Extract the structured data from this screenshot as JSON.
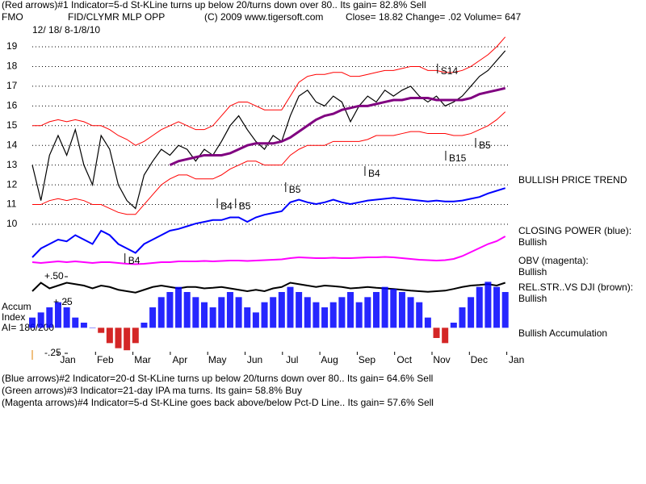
{
  "chart_data": {
    "type": "line",
    "header": [
      "(Red arrows)#1 Indicator=5-d St-KLine turns up below 20/turns down over 80.. Its gain= 82.8% Sell",
      "FMO",
      "FID/CLYMR MLP OPP",
      "(C) 2009 www.tigersoft.com",
      "Close=  18.82  Change= .02 Volume=  647",
      "12/ 18/ 8-1/8/10"
    ],
    "right_labels": [
      "BULLISH PRICE TREND",
      "CLOSING POWER (blue):",
      "Bullish",
      "OBV (magenta):",
      "Bullish",
      "REL.STR..VS DJI (brown):",
      "Bullish",
      "Bullish Accumulation"
    ],
    "left_labels": [
      "Accum",
      "Index",
      "AI= 186/200"
    ],
    "footer": [
      "(Blue arrows)#2 Indicator=20-d St-KLine turns up below 20/turns down over 80.. Its gain= 64.6% Sell",
      "(Green arrows)#3 Indicator=21-day IPA ma turns. Its gain= 58.8% Buy",
      "(Magenta arrows)#4 Indicator=5-d St-KLine goes back above/below Pct-D Line.. Its gain= 57.6% Sell"
    ],
    "x": [
      -0.95,
      -0.72,
      -0.49,
      -0.26,
      -0.03,
      0.2,
      0.43,
      0.66,
      0.89,
      1.12,
      1.35,
      1.58,
      1.81,
      2.04,
      2.27,
      2.5,
      2.73,
      2.96,
      3.19,
      3.42,
      3.65,
      3.88,
      4.11,
      4.34,
      4.57,
      4.8,
      5.03,
      5.26,
      5.49,
      5.72,
      5.95,
      6.18,
      6.41,
      6.64,
      6.87,
      7.1,
      7.33,
      7.56,
      7.79,
      8.02,
      8.25,
      8.48,
      8.71,
      8.94,
      9.17,
      9.4,
      9.63,
      9.86,
      10.09,
      10.32,
      10.55,
      10.78,
      11.01,
      11.24,
      11.47,
      11.7
    ],
    "xlim": [
      -1,
      12.5
    ],
    "xticks": [
      {
        "value": 0,
        "label": "Jan"
      },
      {
        "value": 1,
        "label": "Feb"
      },
      {
        "value": 2,
        "label": "Mar"
      },
      {
        "value": 3,
        "label": "Apr"
      },
      {
        "value": 4,
        "label": "May"
      },
      {
        "value": 5,
        "label": "Jun"
      },
      {
        "value": 6,
        "label": "Jul"
      },
      {
        "value": 7,
        "label": "Aug"
      },
      {
        "value": 8,
        "label": "Sep"
      },
      {
        "value": 9,
        "label": "Oct"
      },
      {
        "value": 10,
        "label": "Nov"
      },
      {
        "value": 11,
        "label": "Dec"
      },
      {
        "value": 12,
        "label": "Jan"
      }
    ],
    "ylim": [
      10,
      19
    ],
    "yticks": [
      10,
      11,
      12,
      13,
      14,
      15,
      16,
      17,
      18,
      19
    ],
    "grid": true,
    "series": [
      {
        "color": "#000000",
        "width": 1.2,
        "values": [
          13.0,
          11.2,
          13.5,
          14.5,
          13.5,
          14.8,
          13.0,
          12.0,
          14.5,
          13.8,
          12.0,
          11.2,
          10.8,
          12.5,
          13.2,
          13.8,
          13.5,
          14.0,
          13.8,
          13.2,
          13.8,
          13.5,
          14.2,
          15.0,
          15.5,
          14.8,
          14.2,
          13.8,
          14.5,
          14.2,
          15.5,
          16.5,
          16.8,
          16.2,
          16.0,
          16.5,
          16.2,
          15.2,
          16.0,
          16.5,
          16.2,
          16.8,
          16.5,
          16.8,
          17.0,
          16.5,
          16.2,
          16.5,
          16.0,
          16.2,
          16.5,
          17.0,
          17.5,
          17.8,
          18.3,
          18.8
        ]
      },
      {
        "color": "#ff0000",
        "width": 1,
        "values": [
          15,
          15,
          15.2,
          15.3,
          15.2,
          15.3,
          15.2,
          15.0,
          15.0,
          14.8,
          14.5,
          14.3,
          14.0,
          14.2,
          14.5,
          14.8,
          15.0,
          15.2,
          15.0,
          14.8,
          14.8,
          15.0,
          15.5,
          16.0,
          16.2,
          16.2,
          16.0,
          15.8,
          15.8,
          15.8,
          16.5,
          17.2,
          17.5,
          17.6,
          17.6,
          17.7,
          17.7,
          17.5,
          17.5,
          17.6,
          17.7,
          17.8,
          17.8,
          17.9,
          18.0,
          18.0,
          17.8,
          17.8,
          17.7,
          17.7,
          17.8,
          18.0,
          18.3,
          18.6,
          19.0,
          19.5
        ]
      },
      {
        "color": "#ff0000",
        "width": 1,
        "values": [
          11,
          11,
          11.2,
          11.3,
          11.2,
          11.3,
          11.2,
          11,
          11,
          10.8,
          10.6,
          10.5,
          10.5,
          11,
          11.5,
          12,
          12.3,
          12.5,
          12.5,
          12.3,
          12.3,
          12.3,
          12.5,
          12.8,
          13.0,
          13.2,
          13.2,
          13.0,
          13.0,
          13.0,
          13.5,
          13.8,
          14,
          14,
          14,
          14.2,
          14.2,
          14.2,
          14.2,
          14.3,
          14.5,
          14.5,
          14.5,
          14.6,
          14.7,
          14.7,
          14.6,
          14.6,
          14.6,
          14.5,
          14.5,
          14.6,
          14.8,
          15,
          15.3,
          15.7
        ]
      },
      {
        "color": "#800080",
        "width": 3,
        "values": [
          null,
          null,
          null,
          null,
          null,
          null,
          null,
          null,
          null,
          null,
          null,
          null,
          null,
          null,
          null,
          null,
          13.0,
          13.2,
          13.3,
          13.4,
          13.5,
          13.5,
          13.5,
          13.6,
          13.8,
          14.0,
          14.1,
          14.1,
          14.1,
          14.2,
          14.4,
          14.7,
          15.0,
          15.3,
          15.5,
          15.6,
          15.8,
          15.9,
          16.0,
          16.0,
          16.1,
          16.2,
          16.3,
          16.3,
          16.4,
          16.4,
          16.4,
          16.3,
          16.3,
          16.3,
          16.3,
          16.4,
          16.6,
          16.7,
          16.8,
          16.9
        ]
      }
    ],
    "panels": [
      {
        "ylim": [
          0,
          100
        ],
        "color": "#0000ff",
        "width": 2,
        "values": [
          10,
          20,
          25,
          30,
          28,
          35,
          30,
          25,
          40,
          35,
          25,
          20,
          15,
          25,
          30,
          35,
          40,
          42,
          45,
          48,
          50,
          52,
          52,
          55,
          55,
          50,
          55,
          58,
          60,
          62,
          72,
          75,
          72,
          70,
          72,
          75,
          72,
          70,
          72,
          74,
          75,
          76,
          77,
          76,
          75,
          74,
          73,
          74,
          73,
          73,
          74,
          76,
          78,
          82,
          85,
          88
        ]
      },
      {
        "ylim": [
          0,
          100
        ],
        "color": "#ff00ff",
        "width": 2,
        "values": [
          20,
          18,
          20,
          22,
          20,
          22,
          20,
          18,
          20,
          20,
          18,
          16,
          15,
          16,
          18,
          20,
          20,
          22,
          22,
          22,
          23,
          22,
          23,
          24,
          24,
          23,
          24,
          25,
          26,
          27,
          30,
          32,
          31,
          30,
          30,
          31,
          30,
          30,
          31,
          32,
          32,
          33,
          32,
          30,
          28,
          26,
          25,
          24,
          25,
          28,
          35,
          45,
          55,
          65,
          72,
          84
        ]
      },
      {
        "ylim": [
          0,
          100
        ],
        "color": "#000000",
        "width": 2,
        "values": [
          40,
          70,
          50,
          60,
          70,
          65,
          60,
          50,
          60,
          55,
          45,
          40,
          35,
          45,
          55,
          60,
          55,
          50,
          55,
          55,
          50,
          52,
          55,
          50,
          45,
          40,
          45,
          40,
          50,
          55,
          70,
          65,
          60,
          55,
          60,
          58,
          55,
          50,
          52,
          55,
          52,
          50,
          48,
          45,
          42,
          40,
          38,
          40,
          42,
          48,
          55,
          60,
          62,
          65,
          60,
          70
        ]
      }
    ],
    "accum": {
      "ylim": [
        -0.25,
        0.5
      ],
      "yticks": [
        {
          "value": 0.5,
          "label": "+.50"
        },
        {
          "value": 0.25,
          "label": "+.25"
        },
        {
          "value": -0.25,
          "label": "-.25"
        }
      ],
      "pos_color": "#0000ff",
      "neg_color": "#cc0000",
      "values": [
        0.1,
        0.15,
        0.2,
        0.25,
        0.2,
        0.1,
        0.05,
        0,
        -0.05,
        -0.15,
        -0.2,
        -0.22,
        -0.15,
        0.05,
        0.2,
        0.3,
        0.35,
        0.4,
        0.35,
        0.3,
        0.25,
        0.2,
        0.3,
        0.35,
        0.3,
        0.2,
        0.15,
        0.25,
        0.3,
        0.35,
        0.4,
        0.35,
        0.3,
        0.25,
        0.2,
        0.25,
        0.3,
        0.35,
        0.25,
        0.3,
        0.35,
        0.4,
        0.38,
        0.35,
        0.3,
        0.25,
        0.1,
        -0.1,
        -0.15,
        0.05,
        0.2,
        0.3,
        0.4,
        0.45,
        0.4,
        0.35
      ]
    },
    "annotations": [
      {
        "label": "B4",
        "x": 1.7,
        "y": 8.28
      },
      {
        "label": "B4",
        "x": 4.17,
        "y": 11.06
      },
      {
        "label": "B5",
        "x": 4.66,
        "y": 11.06
      },
      {
        "label": "B5",
        "x": 6.0,
        "y": 11.88
      },
      {
        "label": "B4",
        "x": 8.12,
        "y": 12.7
      },
      {
        "label": "B15",
        "x": 10.28,
        "y": 13.48
      },
      {
        "label": "B5",
        "x": 11.08,
        "y": 14.13
      },
      {
        "label": "S14",
        "x": 10.06,
        "y": 17.9
      }
    ]
  }
}
